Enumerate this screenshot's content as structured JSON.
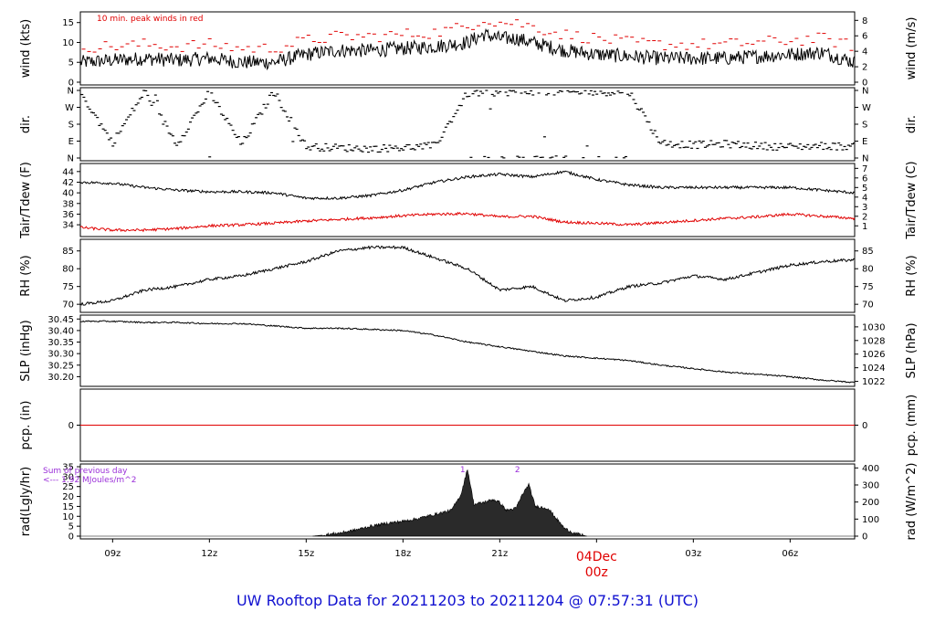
{
  "title": "UW Rooftop Data for 20211203  to  20211204 @ 07:57:31  (UTC)",
  "colors": {
    "title": "#1010d0",
    "series_primary": "#000000",
    "series_secondary": "#e00000",
    "annotation": "#9b30d9",
    "date_label": "#e00000",
    "grid_frame": "#000000"
  },
  "x_axis": {
    "ticks": [
      "09z",
      "12z",
      "15z",
      "18z",
      "21z",
      "03z",
      "06z"
    ],
    "tick_hours": [
      9,
      12,
      15,
      18,
      21,
      27,
      30
    ],
    "date_label": "04Dec",
    "date_sublabel": "00z",
    "date_hour": 24,
    "range_hours": [
      8.0,
      32.0
    ]
  },
  "chart_data": [
    {
      "id": "wind",
      "type": "line",
      "ylabel_left": "wind (kts)",
      "ylabel_right": "wind (m/s)",
      "yticks_left": [
        "0",
        "5",
        "10",
        "15"
      ],
      "yticks_right": [
        "0",
        "2",
        "4",
        "6",
        "8"
      ],
      "ylim": [
        0,
        17
      ],
      "annotation": "10 min. peak winds in red",
      "series": [
        {
          "name": "wind",
          "color": "#000000",
          "x": [
            8,
            9,
            10,
            11,
            12,
            13,
            14,
            15,
            16,
            17,
            18,
            19,
            20,
            20.5,
            21,
            21.5,
            22,
            23,
            24,
            25,
            26,
            27,
            28,
            29,
            30,
            31,
            32
          ],
          "y": [
            5,
            5.5,
            6,
            5.5,
            6,
            5,
            5,
            7,
            8,
            8,
            8.5,
            9,
            10,
            12,
            11,
            11,
            10,
            8,
            7,
            6.5,
            6,
            6,
            6,
            6.5,
            7,
            7.5,
            5
          ]
        },
        {
          "name": "10 min. peak winds",
          "color": "#e00000",
          "x": [
            8,
            9,
            10,
            11,
            12,
            13,
            14,
            15,
            16,
            17,
            18,
            19,
            20,
            20.5,
            21,
            21.5,
            22,
            23,
            24,
            25,
            26,
            27,
            28,
            29,
            30,
            31,
            32
          ],
          "y": [
            9,
            9,
            9.5,
            9,
            9.5,
            8.5,
            8.5,
            10.5,
            11.5,
            11.5,
            12,
            12.5,
            14,
            16,
            15,
            15,
            14,
            12,
            11,
            10,
            9.5,
            9.5,
            9.5,
            10,
            10.5,
            11,
            9
          ]
        }
      ]
    },
    {
      "id": "dir",
      "type": "scatter",
      "ylabel_left": "dir.",
      "ylabel_right": "dir.",
      "yticks_left": [
        "N",
        "E",
        "S",
        "W",
        "N"
      ],
      "yticks_right": [
        "N",
        "E",
        "S",
        "W",
        "N"
      ],
      "ylim": [
        0,
        360
      ],
      "series": [
        {
          "name": "direction",
          "x": [
            8,
            9,
            10,
            11,
            12,
            13,
            14,
            15,
            16,
            17,
            18,
            19,
            20,
            21,
            22,
            23,
            24,
            25,
            26,
            27,
            28,
            29,
            30,
            31,
            32
          ],
          "y": [
            350,
            80,
            355,
            75,
            350,
            70,
            355,
            60,
            55,
            50,
            55,
            65,
            345,
            350,
            355,
            350,
            350,
            355,
            80,
            70,
            75,
            65,
            60,
            65,
            60
          ]
        }
      ]
    },
    {
      "id": "temp",
      "type": "line",
      "ylabel_left": "Tair/Tdew (F)",
      "ylabel_right": "Tair/Tdew (C)",
      "yticks_left": [
        "34",
        "36",
        "38",
        "40",
        "42",
        "44"
      ],
      "yticks_right": [
        "1",
        "2",
        "3",
        "4",
        "5",
        "6",
        "7"
      ],
      "ylim": [
        32.3,
        45.0
      ],
      "series": [
        {
          "name": "Tair",
          "color": "#000000",
          "x": [
            8,
            9,
            10,
            11,
            12,
            13,
            14,
            15,
            16,
            17,
            18,
            19,
            20,
            21,
            22,
            23,
            24,
            25,
            26,
            27,
            28,
            29,
            30,
            31,
            32
          ],
          "y": [
            42,
            41.8,
            41,
            40.5,
            40.2,
            40.2,
            40,
            39,
            39,
            39.5,
            40.5,
            42,
            43,
            43.5,
            43,
            44,
            42.5,
            41.5,
            41,
            41,
            41,
            41,
            41,
            40.5,
            40
          ]
        },
        {
          "name": "Tdew",
          "color": "#e00000",
          "x": [
            8,
            9,
            10,
            11,
            12,
            13,
            14,
            15,
            16,
            17,
            18,
            19,
            20,
            21,
            22,
            23,
            24,
            25,
            26,
            27,
            28,
            29,
            30,
            31,
            32
          ],
          "y": [
            33.5,
            33,
            33,
            33.3,
            33.8,
            34,
            34.3,
            34.7,
            35,
            35.3,
            35.7,
            36,
            36.1,
            35.5,
            35.6,
            34.5,
            34.3,
            34,
            34.4,
            34.8,
            35.2,
            35.5,
            36,
            35.6,
            35.2
          ]
        }
      ]
    },
    {
      "id": "rh",
      "type": "line",
      "ylabel_left": "RH (%)",
      "ylabel_right": "RH (%)",
      "yticks_left": [
        "70",
        "75",
        "80",
        "85"
      ],
      "yticks_right": [
        "70",
        "75",
        "80",
        "85"
      ],
      "ylim": [
        68.5,
        87.5
      ],
      "series": [
        {
          "name": "RH",
          "x": [
            8,
            9,
            10,
            11,
            12,
            13,
            14,
            15,
            16,
            17,
            18,
            19,
            20,
            21,
            22,
            23,
            24,
            25,
            26,
            27,
            28,
            29,
            30,
            31,
            32
          ],
          "y": [
            70,
            71,
            74,
            75,
            77,
            78,
            80,
            82,
            85,
            86,
            86,
            83,
            80,
            74,
            75,
            71,
            72,
            75,
            76,
            78,
            77,
            79,
            81,
            82,
            82.5
          ]
        }
      ]
    },
    {
      "id": "slp",
      "type": "line",
      "ylabel_left": "SLP (inHg)",
      "ylabel_right": "SLP (hPa)",
      "yticks_left": [
        "30.20",
        "30.25",
        "30.30",
        "30.35",
        "30.40",
        "30.45"
      ],
      "yticks_right": [
        "1022",
        "1024",
        "1026",
        "1028",
        "1030"
      ],
      "ylim": [
        30.17,
        30.455
      ],
      "series": [
        {
          "name": "SLP",
          "x": [
            8,
            9,
            10,
            11,
            12,
            13,
            14,
            15,
            16,
            17,
            18,
            19,
            20,
            21,
            22,
            23,
            24,
            25,
            26,
            27,
            28,
            29,
            30,
            31,
            32
          ],
          "y": [
            30.44,
            30.44,
            30.435,
            30.435,
            30.43,
            30.43,
            30.42,
            30.41,
            30.41,
            30.405,
            30.4,
            30.38,
            30.35,
            30.33,
            30.31,
            30.29,
            30.28,
            30.27,
            30.25,
            30.235,
            30.22,
            30.21,
            30.2,
            30.185,
            30.175
          ]
        }
      ]
    },
    {
      "id": "pcp",
      "type": "line",
      "ylabel_left": "pcp. (in)",
      "ylabel_right": "pcp. (mm)",
      "yticks_left": [
        "0"
      ],
      "yticks_right": [
        "0"
      ],
      "ylim": [
        -1,
        1
      ],
      "series": [
        {
          "name": "precipitation",
          "color": "#e00000",
          "x": [
            8,
            32
          ],
          "y": [
            0,
            0
          ]
        }
      ]
    },
    {
      "id": "rad",
      "type": "area",
      "ylabel_left": "rad(Lgly/hr)",
      "ylabel_right": "rad (W/m^2)",
      "yticks_left": [
        "0",
        "5",
        "10",
        "15",
        "20",
        "25",
        "30",
        "35"
      ],
      "yticks_right": [
        "0",
        "100",
        "200",
        "300",
        "400"
      ],
      "ylim": [
        0,
        35
      ],
      "annotation_lines": [
        "Sum of previous day",
        "<--- 1.92 MJoules/m^2"
      ],
      "peak_labels": [
        {
          "text": "1",
          "x": 19.85
        },
        {
          "text": "2",
          "x": 21.55
        }
      ],
      "series": [
        {
          "name": "radiation",
          "x": [
            15.2,
            15.5,
            16,
            16.5,
            17,
            17.5,
            18,
            18.5,
            19,
            19.5,
            19.8,
            20,
            20.2,
            20.5,
            20.8,
            21,
            21.2,
            21.5,
            21.7,
            21.9,
            22.1,
            22.5,
            22.8,
            23,
            23.3,
            23.7
          ],
          "y": [
            0,
            0.5,
            1.5,
            3,
            5,
            6.5,
            7.5,
            9,
            11,
            13,
            21,
            34,
            16,
            17,
            18.5,
            17,
            13,
            14,
            21,
            26,
            15,
            14,
            8,
            4,
            1.5,
            0
          ]
        }
      ]
    }
  ]
}
